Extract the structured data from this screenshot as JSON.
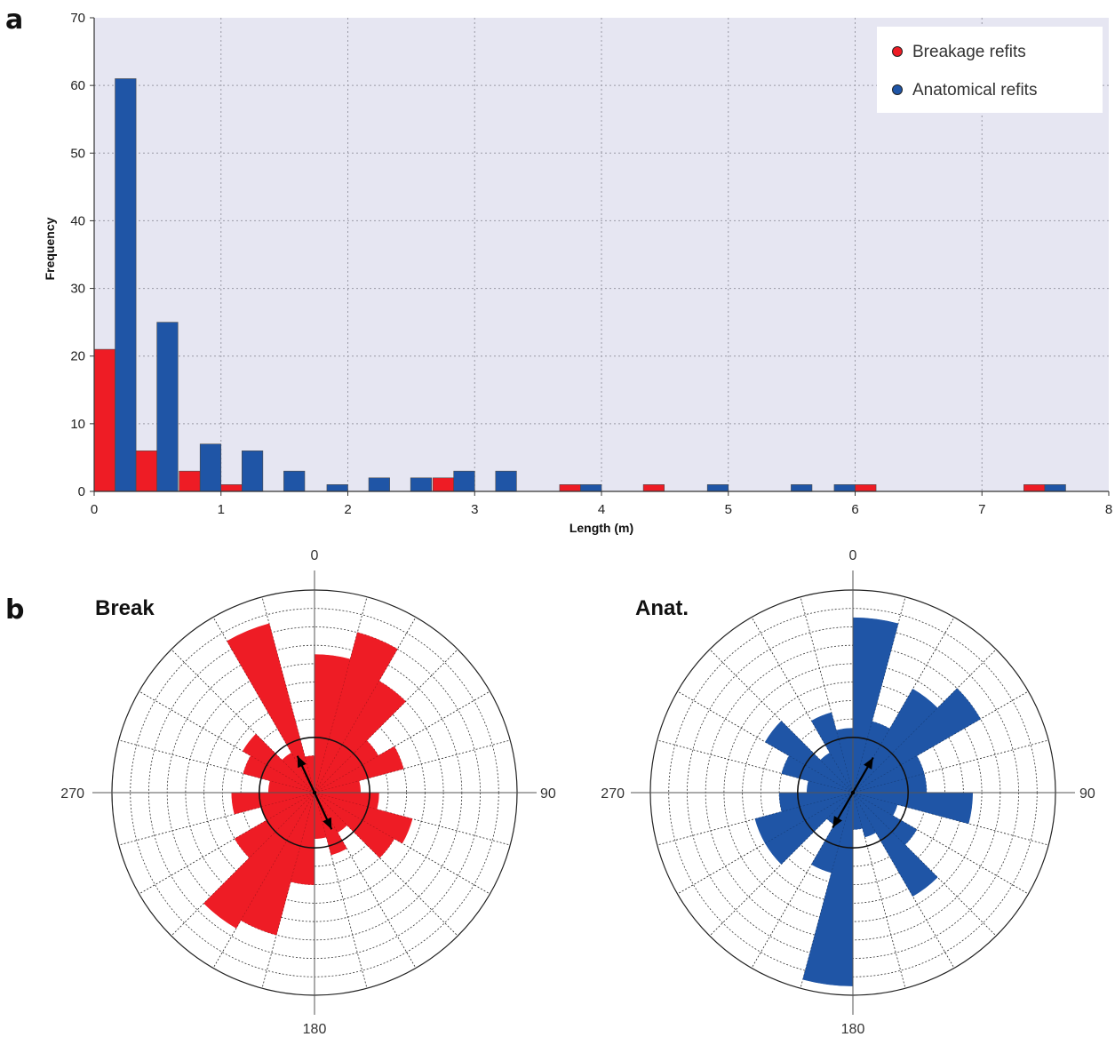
{
  "panels": {
    "a": "a",
    "b": "b"
  },
  "colors": {
    "breakage": "#ee1c25",
    "anatomical": "#1f55a6",
    "plot_bg": "#e6e6f2"
  },
  "chart_data": [
    {
      "type": "bar",
      "title": "",
      "xlabel": "Length (m)",
      "ylabel": "Frequency",
      "xlim": [
        0,
        8
      ],
      "ylim": [
        0,
        70
      ],
      "xticks": [
        "0",
        "1",
        "2",
        "3",
        "4",
        "5",
        "6",
        "7",
        "8"
      ],
      "yticks": [
        "0",
        "10",
        "20",
        "30",
        "40",
        "50",
        "60",
        "70"
      ],
      "bin_width": 0.33,
      "grid": true,
      "legend_position": "top-right",
      "bin_starts": [
        0,
        0.33,
        0.67,
        1.0,
        1.33,
        1.67,
        2.0,
        2.33,
        2.67,
        3.0,
        3.33,
        3.67,
        4.0,
        4.33,
        4.67,
        5.0,
        5.33,
        5.67,
        6.0,
        6.33,
        6.67,
        7.0,
        7.33
      ],
      "series": [
        {
          "name": "Breakage refits",
          "color": "#ee1c25",
          "values": [
            21,
            6,
            3,
            1,
            0,
            0,
            0,
            0,
            2,
            0,
            0,
            1,
            0,
            1,
            0,
            0,
            0,
            0,
            1,
            0,
            0,
            0,
            1
          ]
        },
        {
          "name": "Anatomical refits",
          "color": "#1f55a6",
          "values": [
            61,
            25,
            7,
            6,
            3,
            1,
            2,
            2,
            3,
            3,
            0,
            1,
            0,
            0,
            1,
            0,
            1,
            1,
            0,
            0,
            0,
            0,
            1
          ]
        }
      ]
    },
    {
      "type": "rose",
      "title": "Break",
      "color": "#ee1c25",
      "sector_width_deg": 15,
      "direction_labels": [
        "0",
        "90",
        "180",
        "270"
      ],
      "mean_axis_deg": 155,
      "rmax": 11,
      "values": [
        7.5,
        9.0,
        7.0,
        4.0,
        5.0,
        2.5,
        3.5,
        5.5,
        5.0,
        2.5,
        3.5,
        2.5,
        5.0,
        8.0,
        8.5,
        5.0,
        3.0,
        4.5,
        2.5,
        4.0,
        4.5,
        2.5,
        9.5,
        2.0
      ]
    },
    {
      "type": "rose",
      "title": "Anat.",
      "color": "#1f55a6",
      "sector_width_deg": 15,
      "direction_labels": [
        "0",
        "90",
        "180",
        "270"
      ],
      "mean_axis_deg": 30,
      "rmax": 11,
      "values": [
        9.5,
        4.0,
        6.5,
        8.0,
        4.0,
        4.0,
        6.5,
        2.5,
        4.0,
        6.5,
        2.5,
        2.0,
        10.5,
        4.5,
        2.0,
        5.5,
        5.5,
        4.0,
        2.5,
        4.0,
        5.5,
        2.5,
        4.5,
        3.5
      ]
    }
  ]
}
